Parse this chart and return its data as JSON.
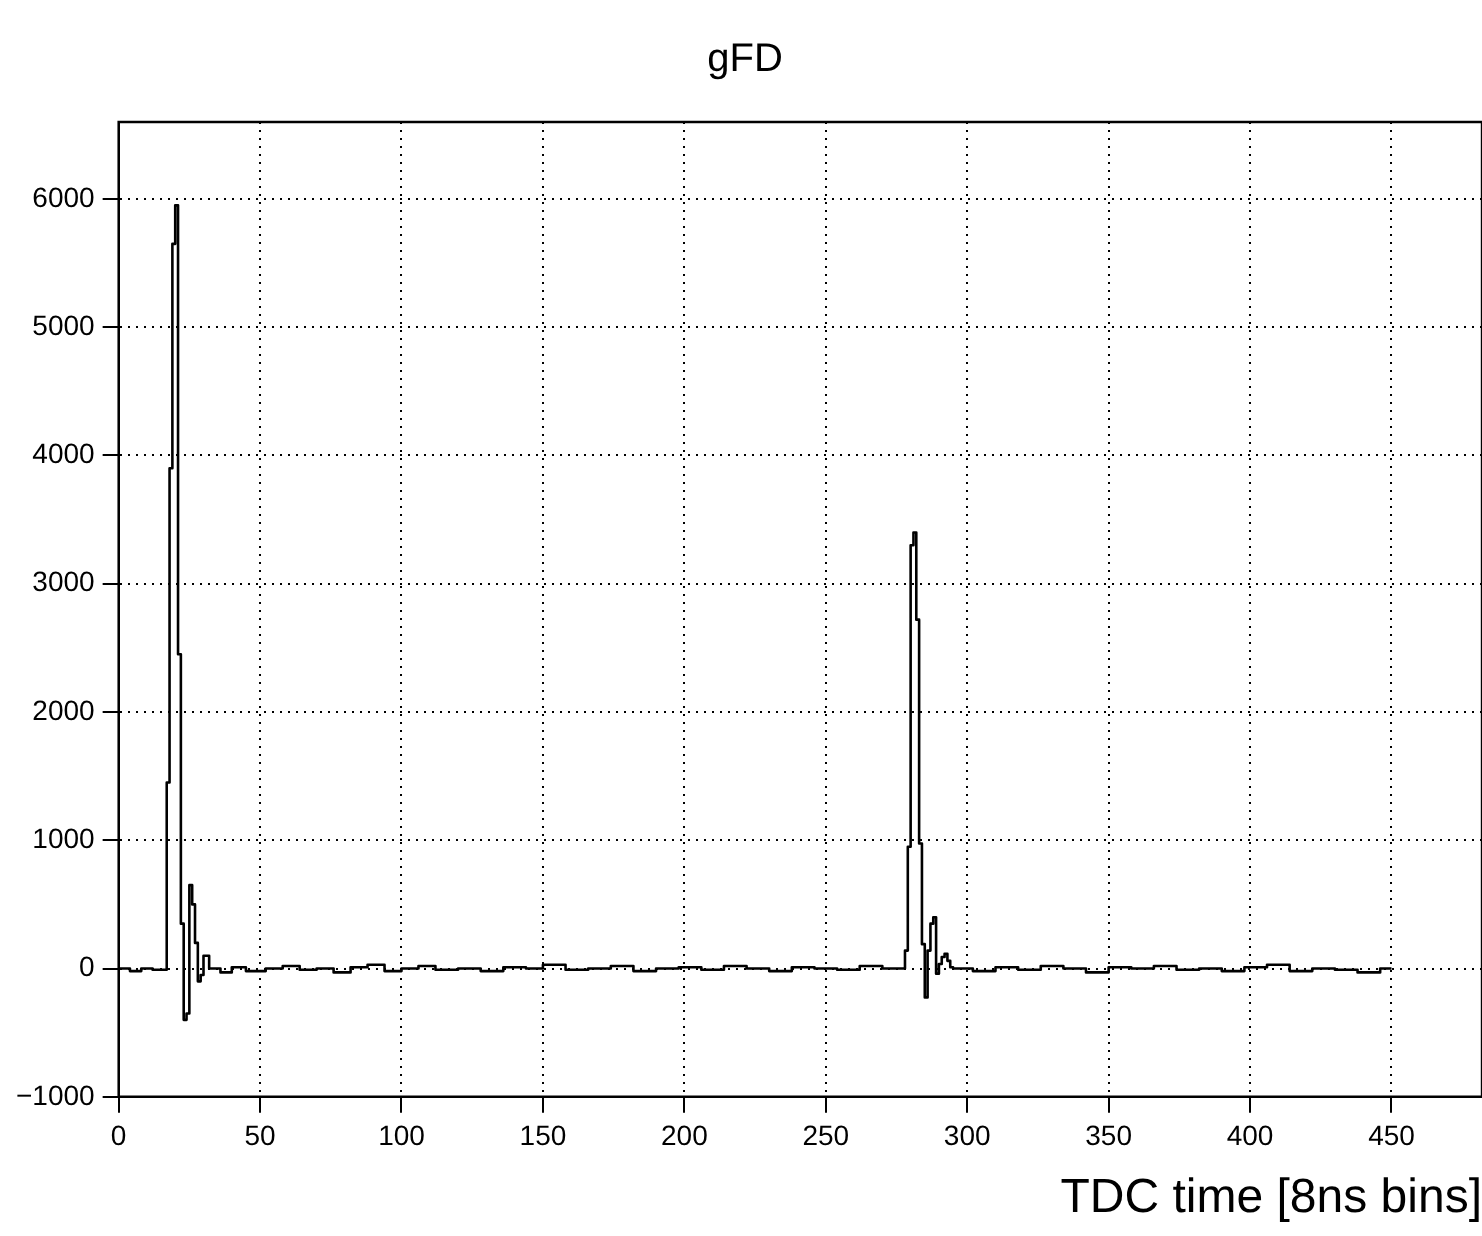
{
  "chart_data": {
    "type": "step",
    "title": "gFD",
    "xlabel": "TDC time [8ns bins]",
    "xlim": [
      0,
      482
    ],
    "xticks": [
      0,
      50,
      100,
      150,
      200,
      250,
      300,
      350,
      400,
      450
    ],
    "ylim": [
      -1000,
      6600
    ],
    "yticks": [
      {
        "value": -1000,
        "label": "−1000"
      },
      0,
      1000,
      2000,
      3000,
      4000,
      5000,
      6000
    ],
    "grid": true,
    "legend": false,
    "marker": "none",
    "series": [
      {
        "color": "#000000",
        "x": [
          0,
          4,
          8,
          12,
          17,
          18,
          19,
          20,
          21,
          22,
          23,
          24,
          25,
          26,
          27,
          28,
          29,
          30,
          31,
          32,
          36,
          40,
          45,
          52,
          58,
          64,
          70,
          76,
          82,
          88,
          94,
          100,
          106,
          112,
          120,
          128,
          136,
          144,
          150,
          158,
          166,
          174,
          182,
          190,
          198,
          206,
          214,
          222,
          230,
          238,
          246,
          254,
          262,
          270,
          278,
          279,
          280,
          281,
          282,
          283,
          284,
          285,
          286,
          287,
          288,
          289,
          290,
          291,
          292,
          293,
          294,
          295,
          302,
          310,
          318,
          326,
          334,
          342,
          350,
          358,
          366,
          374,
          382,
          390,
          398,
          406,
          414,
          422,
          430,
          438,
          446,
          450
        ],
        "values": [
          0,
          -20,
          0,
          -10,
          1450,
          3900,
          5650,
          5950,
          2450,
          350,
          -400,
          -350,
          650,
          500,
          200,
          -100,
          -50,
          100,
          100,
          0,
          -30,
          10,
          -20,
          0,
          20,
          -10,
          0,
          -30,
          10,
          30,
          -20,
          0,
          20,
          -10,
          0,
          -20,
          10,
          0,
          30,
          -10,
          0,
          20,
          -20,
          0,
          10,
          -10,
          20,
          0,
          -20,
          10,
          0,
          -10,
          20,
          0,
          140,
          950,
          3300,
          3400,
          2720,
          975,
          190,
          -225,
          140,
          350,
          400,
          -40,
          35,
          90,
          115,
          60,
          10,
          0,
          -20,
          10,
          -10,
          20,
          0,
          -30,
          10,
          0,
          20,
          -10,
          0,
          -20,
          10,
          30,
          -20,
          0,
          -10,
          -30,
          0,
          0
        ]
      }
    ]
  }
}
